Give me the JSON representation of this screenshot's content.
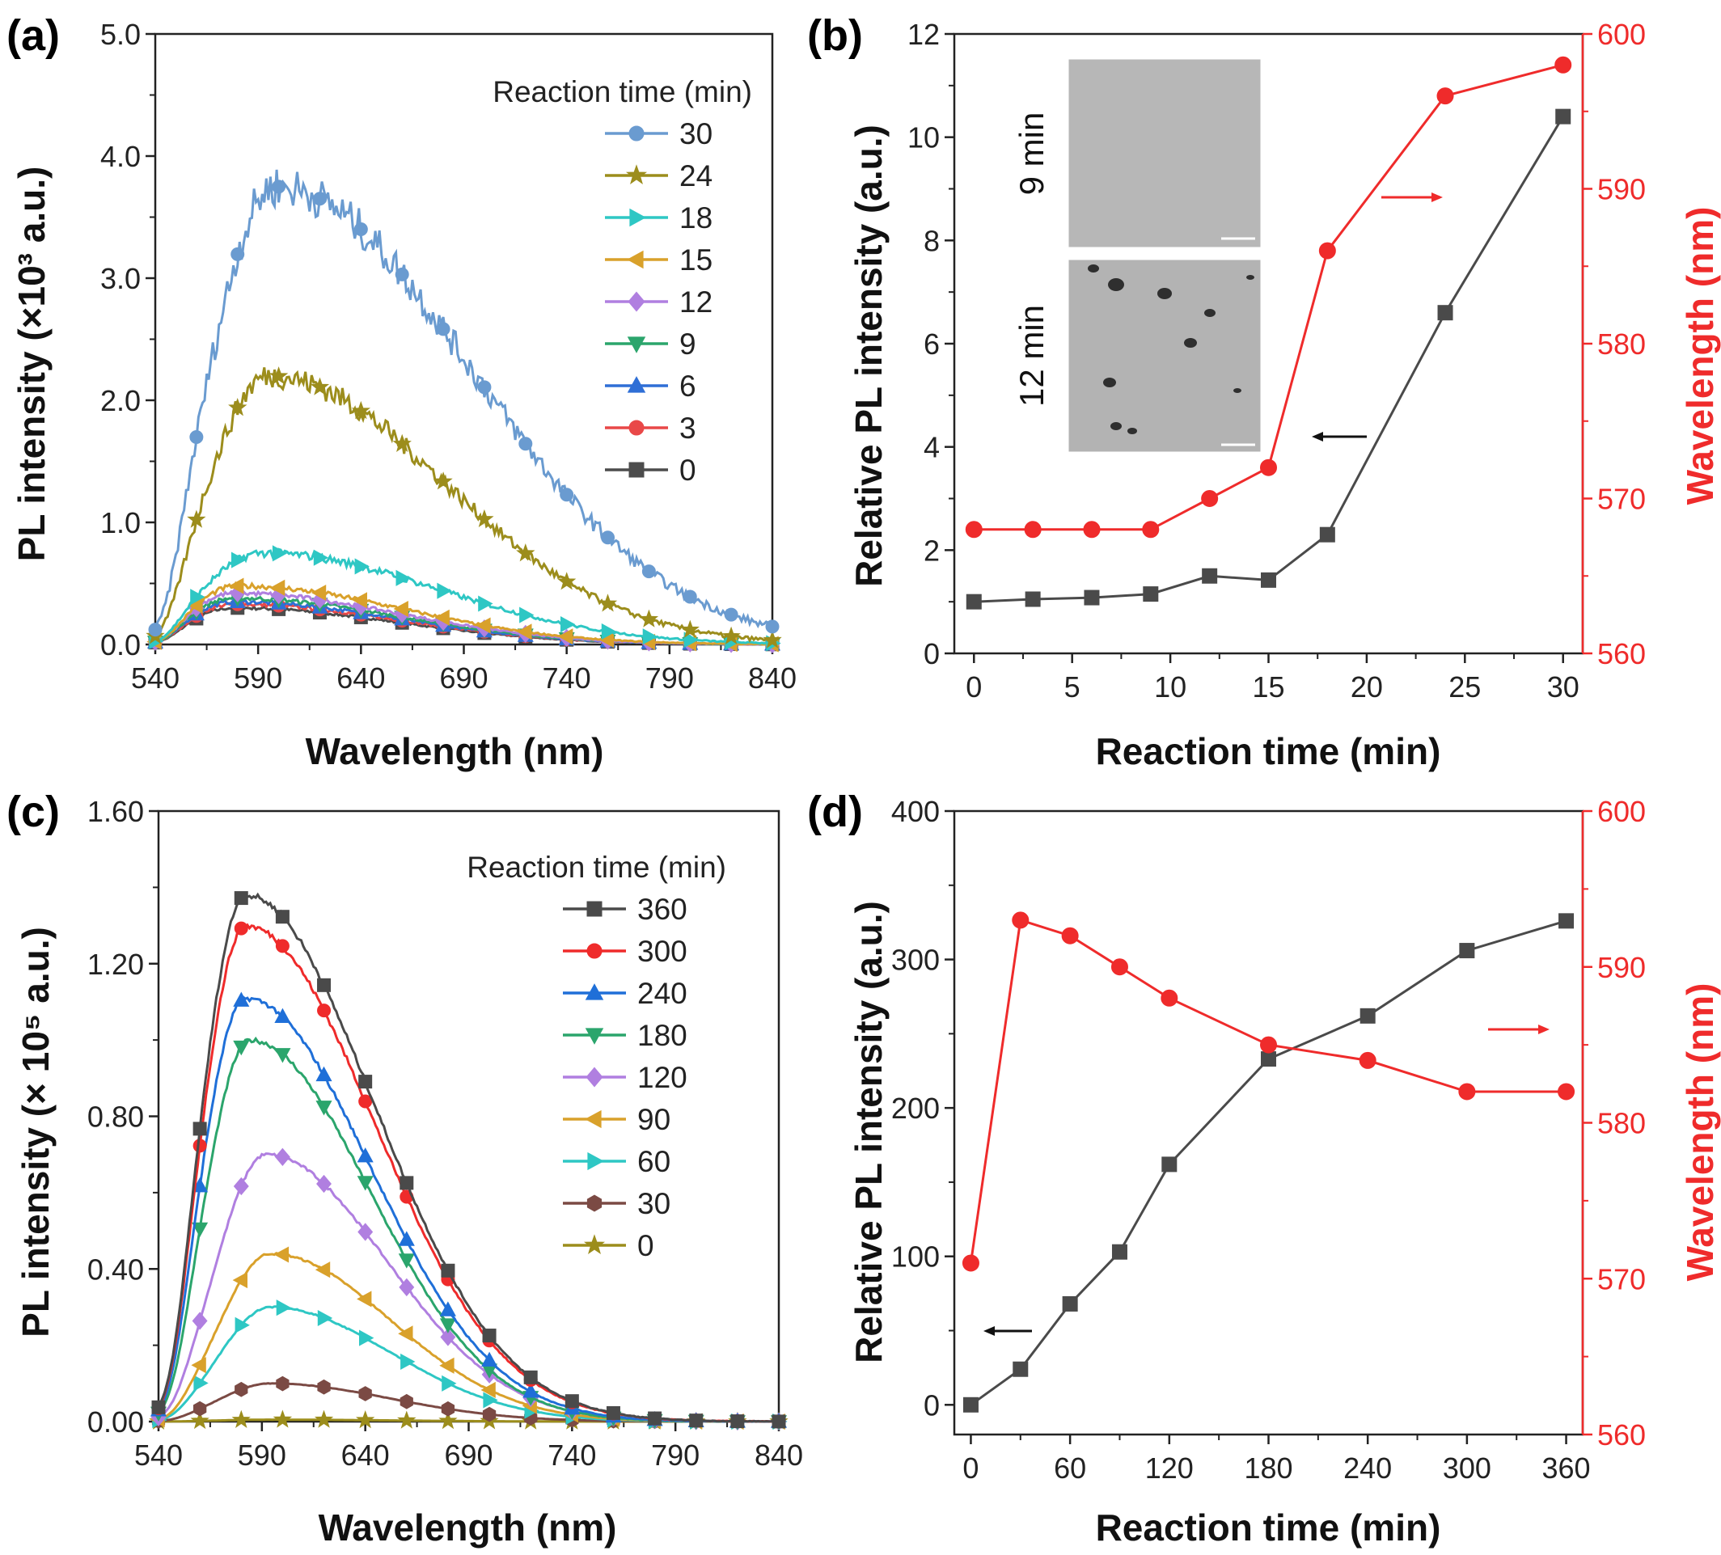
{
  "chart_data": [
    {
      "panel": "(a)",
      "type": "line",
      "xlabel": "Wavelength (nm)",
      "ylabel": "PL intensity (×10³ a.u.)",
      "xlim": [
        540,
        840
      ],
      "ylim": [
        0,
        5.0
      ],
      "xticks": [
        "540",
        "590",
        "640",
        "690",
        "740",
        "790",
        "840"
      ],
      "yticks": [
        "0.0",
        "1.0",
        "2.0",
        "3.0",
        "4.0",
        "5.0"
      ],
      "legend_title": "Reaction time (min)",
      "legend_placement": "top-right",
      "series": [
        {
          "name": "30",
          "color": "#6a9bd0",
          "marker": "circle",
          "peak": 3.75,
          "center": 598,
          "sl": 32,
          "sr": 95
        },
        {
          "name": "24",
          "color": "#9c8d1c",
          "marker": "star",
          "peak": 2.2,
          "center": 595,
          "sl": 30,
          "sr": 85
        },
        {
          "name": "18",
          "color": "#2ec7c4",
          "marker": "tri-right",
          "peak": 0.75,
          "center": 592,
          "sl": 30,
          "sr": 85
        },
        {
          "name": "15",
          "color": "#d9a12b",
          "marker": "tri-left",
          "peak": 0.48,
          "center": 580,
          "sl": 25,
          "sr": 80
        },
        {
          "name": "12",
          "color": "#b07fe0",
          "marker": "diamond",
          "peak": 0.42,
          "center": 578,
          "sl": 25,
          "sr": 80
        },
        {
          "name": "9",
          "color": "#2ba56c",
          "marker": "tri-down",
          "peak": 0.38,
          "center": 578,
          "sl": 25,
          "sr": 80
        },
        {
          "name": "6",
          "color": "#2f6fd6",
          "marker": "tri-up",
          "peak": 0.35,
          "center": 578,
          "sl": 25,
          "sr": 80
        },
        {
          "name": "3",
          "color": "#e94848",
          "marker": "circle",
          "peak": 0.33,
          "center": 578,
          "sl": 25,
          "sr": 80
        },
        {
          "name": "0",
          "color": "#4c4c4c",
          "marker": "square",
          "peak": 0.3,
          "center": 578,
          "sl": 25,
          "sr": 80
        }
      ]
    },
    {
      "panel": "(b)",
      "type": "line",
      "xlabel": "Reaction time (min)",
      "ylabel": "Relative PL intensity (a.u.)",
      "y2label": "Wavelength (nm)",
      "xlim": [
        -1,
        31
      ],
      "ylim": [
        0,
        12
      ],
      "y2lim": [
        560,
        600
      ],
      "xticks": [
        "0",
        "5",
        "10",
        "15",
        "20",
        "25",
        "30"
      ],
      "yticks": [
        "0",
        "2",
        "4",
        "6",
        "8",
        "10",
        "12"
      ],
      "y2ticks": [
        "560",
        "570",
        "580",
        "590",
        "600"
      ],
      "x": [
        0,
        3,
        6,
        9,
        12,
        15,
        18,
        24,
        30
      ],
      "series": [
        {
          "name": "",
          "axis": "left",
          "color": "#4a4a4a",
          "marker": "square",
          "values": [
            1.0,
            1.05,
            1.08,
            1.15,
            1.5,
            1.42,
            2.3,
            6.6,
            10.4
          ]
        },
        {
          "name": "",
          "axis": "right",
          "color": "#ef2b2b",
          "marker": "circle",
          "values": [
            568,
            568,
            568,
            568,
            570,
            572,
            586,
            596,
            598
          ]
        }
      ],
      "inset_labels": [
        "9 min",
        "12 min"
      ]
    },
    {
      "panel": "(c)",
      "type": "line",
      "xlabel": "Wavelength (nm)",
      "ylabel": "PL intensity (× 10⁵ a.u.)",
      "xlim": [
        540,
        840
      ],
      "ylim": [
        0,
        1.6
      ],
      "xticks": [
        "540",
        "590",
        "640",
        "690",
        "740",
        "790",
        "840"
      ],
      "yticks": [
        "0.00",
        "0.40",
        "0.80",
        "1.20",
        "1.60"
      ],
      "legend_title": "Reaction time (min)",
      "legend_placement": "top-right",
      "series": [
        {
          "name": "360",
          "color": "#4a4a4a",
          "marker": "square",
          "peak": 1.38,
          "center": 582,
          "sl": 22,
          "sr": 62
        },
        {
          "name": "300",
          "color": "#ef2b2b",
          "marker": "circle",
          "peak": 1.3,
          "center": 582,
          "sl": 22,
          "sr": 62
        },
        {
          "name": "240",
          "color": "#1f6fd8",
          "marker": "tri-up",
          "peak": 1.11,
          "center": 582,
          "sl": 22,
          "sr": 60
        },
        {
          "name": "180",
          "color": "#2ba56c",
          "marker": "tri-down",
          "peak": 1.0,
          "center": 584,
          "sl": 22,
          "sr": 58
        },
        {
          "name": "120",
          "color": "#b07fe0",
          "marker": "diamond",
          "peak": 0.7,
          "center": 592,
          "sl": 24,
          "sr": 58
        },
        {
          "name": "90",
          "color": "#d9a12b",
          "marker": "tri-left",
          "peak": 0.44,
          "center": 594,
          "sl": 24,
          "sr": 58
        },
        {
          "name": "60",
          "color": "#2ec7c4",
          "marker": "tri-right",
          "peak": 0.3,
          "center": 594,
          "sl": 24,
          "sr": 58
        },
        {
          "name": "30",
          "color": "#7b4a44",
          "marker": "hexagon",
          "peak": 0.1,
          "center": 594,
          "sl": 24,
          "sr": 58
        },
        {
          "name": "0",
          "color": "#9c8d1c",
          "marker": "star",
          "peak": 0.005,
          "center": 594,
          "sl": 24,
          "sr": 58
        }
      ]
    },
    {
      "panel": "(d)",
      "type": "line",
      "xlabel": "Reaction time (min)",
      "ylabel": "Relative PL intensity (a.u.)",
      "y2label": "Wavelength (nm)",
      "xlim": [
        -10,
        370
      ],
      "ylim": [
        -20,
        400
      ],
      "y2lim": [
        560,
        600
      ],
      "xticks": [
        "0",
        "60",
        "120",
        "180",
        "240",
        "300",
        "360"
      ],
      "yticks": [
        "0",
        "100",
        "200",
        "300",
        "400"
      ],
      "y2ticks": [
        "560",
        "570",
        "580",
        "590",
        "600"
      ],
      "x": [
        0,
        30,
        60,
        90,
        120,
        180,
        240,
        300,
        360
      ],
      "series": [
        {
          "name": "",
          "axis": "left",
          "color": "#4a4a4a",
          "marker": "square",
          "values": [
            0,
            24,
            68,
            103,
            162,
            233,
            262,
            306,
            326
          ]
        },
        {
          "name": "",
          "axis": "right",
          "color": "#ef2b2b",
          "marker": "circle",
          "values": [
            571,
            593,
            592,
            590,
            588,
            585,
            584,
            582,
            582
          ]
        }
      ]
    }
  ]
}
